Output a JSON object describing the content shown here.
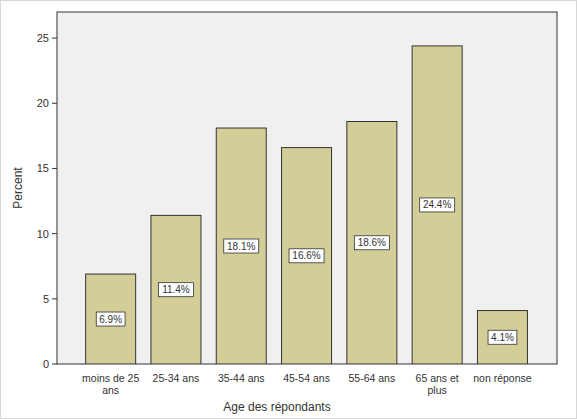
{
  "chart_data": {
    "type": "bar",
    "x_label": "Age des répondants",
    "y_label": "Percent",
    "categories": [
      "moins de 25 ans",
      "25-34 ans",
      "35-44 ans",
      "45-54 ans",
      "55-64 ans",
      "65 ans et plus",
      "non réponse"
    ],
    "values": [
      6.9,
      11.4,
      18.1,
      16.6,
      18.6,
      24.4,
      4.1
    ],
    "value_labels": [
      "6.9%",
      "11.4%",
      "18.1%",
      "16.6%",
      "18.6%",
      "24.4%",
      "4.1%"
    ],
    "data_labels": true,
    "color": "#d3ce97",
    "ylim": [
      0,
      27
    ],
    "yticks": [
      0,
      5,
      10,
      15,
      20,
      25
    ],
    "grid": false
  }
}
